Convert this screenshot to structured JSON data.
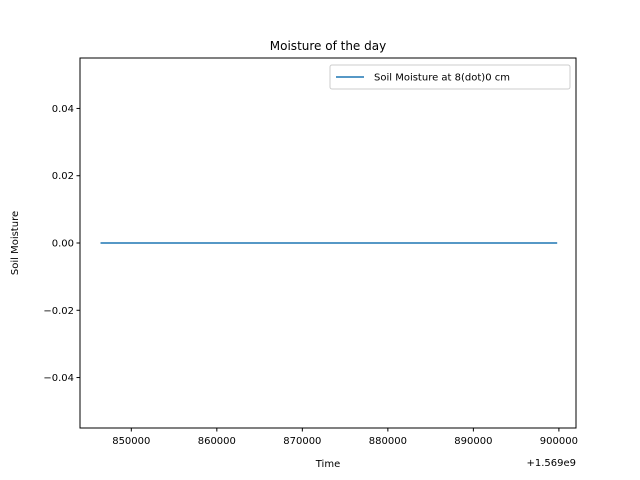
{
  "chart_data": {
    "type": "line",
    "title": "Moisture of the day",
    "xlabel": "Time",
    "ylabel": "Soil Moisture",
    "x_offset_label": "+1.569e9",
    "xlim": [
      844000,
      902000
    ],
    "ylim": [
      -0.055,
      0.055
    ],
    "x_ticks": [
      850000,
      860000,
      870000,
      880000,
      890000,
      900000
    ],
    "x_tick_labels": [
      "850000",
      "860000",
      "870000",
      "880000",
      "890000",
      "900000"
    ],
    "y_ticks": [
      -0.04,
      -0.02,
      0.0,
      0.02,
      0.04
    ],
    "y_tick_labels": [
      "−0.04",
      "−0.02",
      "0.00",
      "0.02",
      "0.04"
    ],
    "grid": false,
    "legend_position": "top-right",
    "series": [
      {
        "name": "Soil Moisture at 8(dot)0 cm",
        "color": "#1f77b4",
        "x": [
          846400,
          899800
        ],
        "y": [
          0.0,
          0.0
        ]
      }
    ]
  }
}
